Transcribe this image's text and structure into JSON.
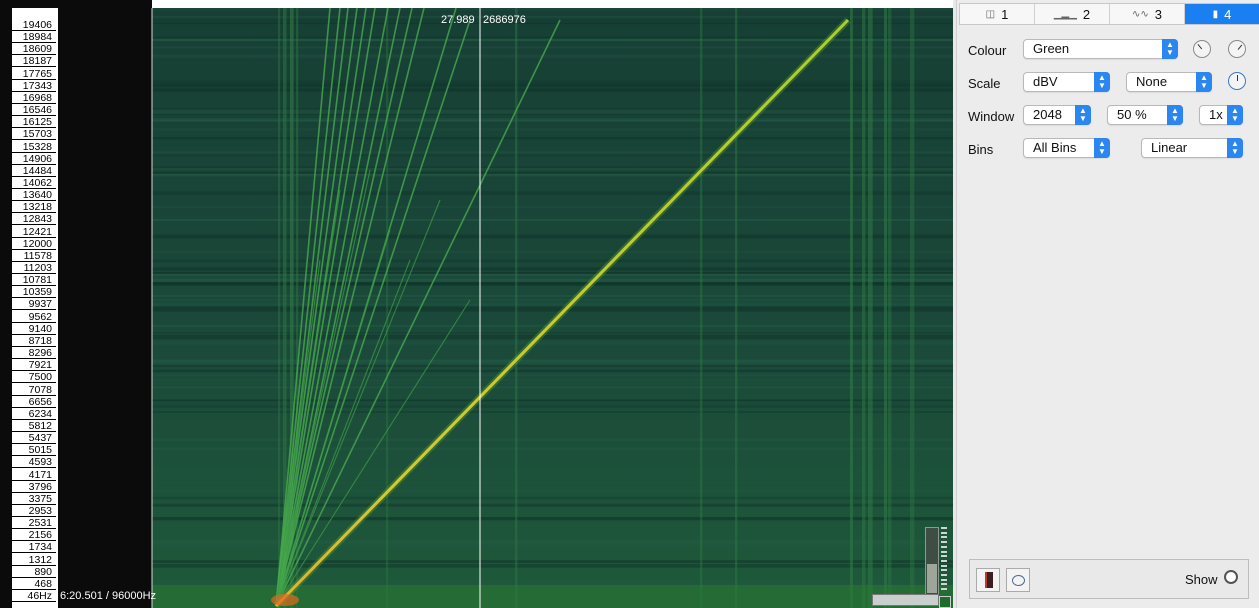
{
  "spectrogram": {
    "frequency_labels": [
      "19406",
      "18984",
      "18609",
      "18187",
      "17765",
      "17343",
      "16968",
      "16546",
      "16125",
      "15703",
      "15328",
      "14906",
      "14484",
      "14062",
      "13640",
      "13218",
      "12843",
      "12421",
      "12000",
      "11578",
      "11203",
      "10781",
      "10359",
      "9937",
      "9562",
      "9140",
      "8718",
      "8296",
      "7921",
      "7500",
      "7078",
      "6656",
      "6234",
      "5812",
      "5437",
      "5015",
      "4593",
      "4171",
      "3796",
      "3375",
      "2953",
      "2531",
      "2156",
      "1734",
      "1312",
      "890",
      "468",
      "46Hz"
    ],
    "time_readout": "6:20.501 / 96000Hz",
    "cursor_value": "27.989",
    "cursor_frame": "2686976",
    "colors": {
      "background": "#18463a",
      "sweep": "#c8d62a",
      "harmonics": "#3aa046"
    }
  },
  "panel": {
    "tabs": [
      {
        "icon": "pane-layout-icon",
        "label": "1"
      },
      {
        "icon": "spectrum-icon",
        "label": "2"
      },
      {
        "icon": "waveform-icon",
        "label": "3"
      },
      {
        "icon": "layer-icon",
        "label": "4",
        "active": true
      }
    ],
    "colour": {
      "label": "Colour",
      "value": "Green"
    },
    "scale": {
      "label": "Scale",
      "value": "dBV",
      "normalize": "None"
    },
    "window": {
      "label": "Window",
      "size": "2048",
      "overlap": "50 %",
      "oversample": "1x"
    },
    "bins": {
      "label": "Bins",
      "mode": "All Bins",
      "frequency_scale": "Linear"
    },
    "bottom": {
      "show_label": "Show"
    },
    "accent_color": "#2b86ef"
  }
}
